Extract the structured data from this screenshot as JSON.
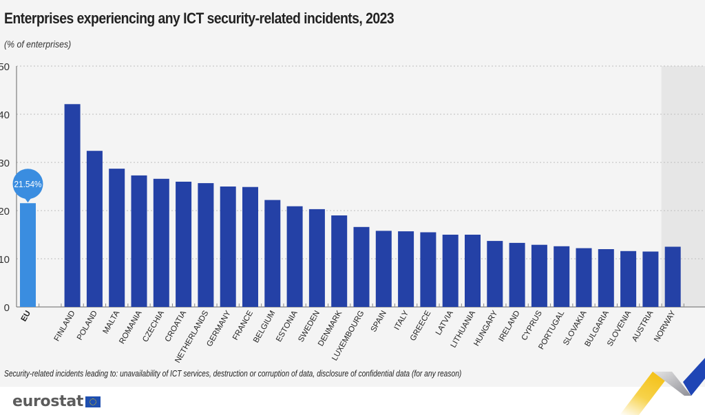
{
  "header": {
    "title": "Enterprises experiencing any ICT security-related incidents, 2023",
    "subtitle": "(% of enterprises)"
  },
  "footnote": "Security-related incidents leading to: unavailability of ICT services, destruction or corruption of data, disclosure of confidential data (for any reason)",
  "branding": {
    "logo_text": "eurostat",
    "flag_icon": "eu-flag-icon"
  },
  "colors": {
    "eu_bar": "#3a8de0",
    "country_bar": "#2441a6",
    "highlight_band": "#e6e6e6",
    "tooltip": "#3a8de0"
  },
  "chart_data": {
    "type": "bar",
    "title": "Enterprises experiencing any ICT security-related incidents, 2023",
    "subtitle": "(% of enterprises)",
    "xlabel": "",
    "ylabel": "",
    "ylim": [
      0,
      50
    ],
    "yticks": [
      0,
      10,
      20,
      30,
      40,
      50
    ],
    "grid": true,
    "gridstyle": "dotted",
    "categories": [
      "EU",
      "FINLAND",
      "POLAND",
      "MALTA",
      "ROMANIA",
      "CZECHIA",
      "CROATIA",
      "NETHERLANDS",
      "GERMANY",
      "FRANCE",
      "BELGIUM",
      "ESTONIA",
      "SWEDEN",
      "DENMARK",
      "LUXEMBOURG",
      "SPAIN",
      "ITALY",
      "GREECE",
      "LATVIA",
      "LITHUANIA",
      "HUNGARY",
      "IRELAND",
      "CYPRUS",
      "PORTUGAL",
      "SLOVAKIA",
      "BULGARIA",
      "SLOVENIA",
      "AUSTRIA",
      "NORWAY"
    ],
    "values": [
      21.54,
      42.1,
      32.4,
      28.7,
      27.3,
      26.6,
      26.0,
      25.7,
      25.0,
      24.9,
      22.2,
      20.9,
      20.3,
      19.0,
      16.6,
      15.8,
      15.7,
      15.5,
      15.0,
      15.0,
      13.7,
      13.3,
      12.9,
      12.6,
      12.2,
      12.0,
      11.6,
      11.5,
      12.5
    ],
    "groups": [
      "eu",
      "country",
      "country",
      "country",
      "country",
      "country",
      "country",
      "country",
      "country",
      "country",
      "country",
      "country",
      "country",
      "country",
      "country",
      "country",
      "country",
      "country",
      "country",
      "country",
      "country",
      "country",
      "country",
      "country",
      "country",
      "country",
      "country",
      "country",
      "non-eu"
    ],
    "annotations": [
      {
        "category": "EU",
        "text": "21.54%"
      }
    ]
  }
}
